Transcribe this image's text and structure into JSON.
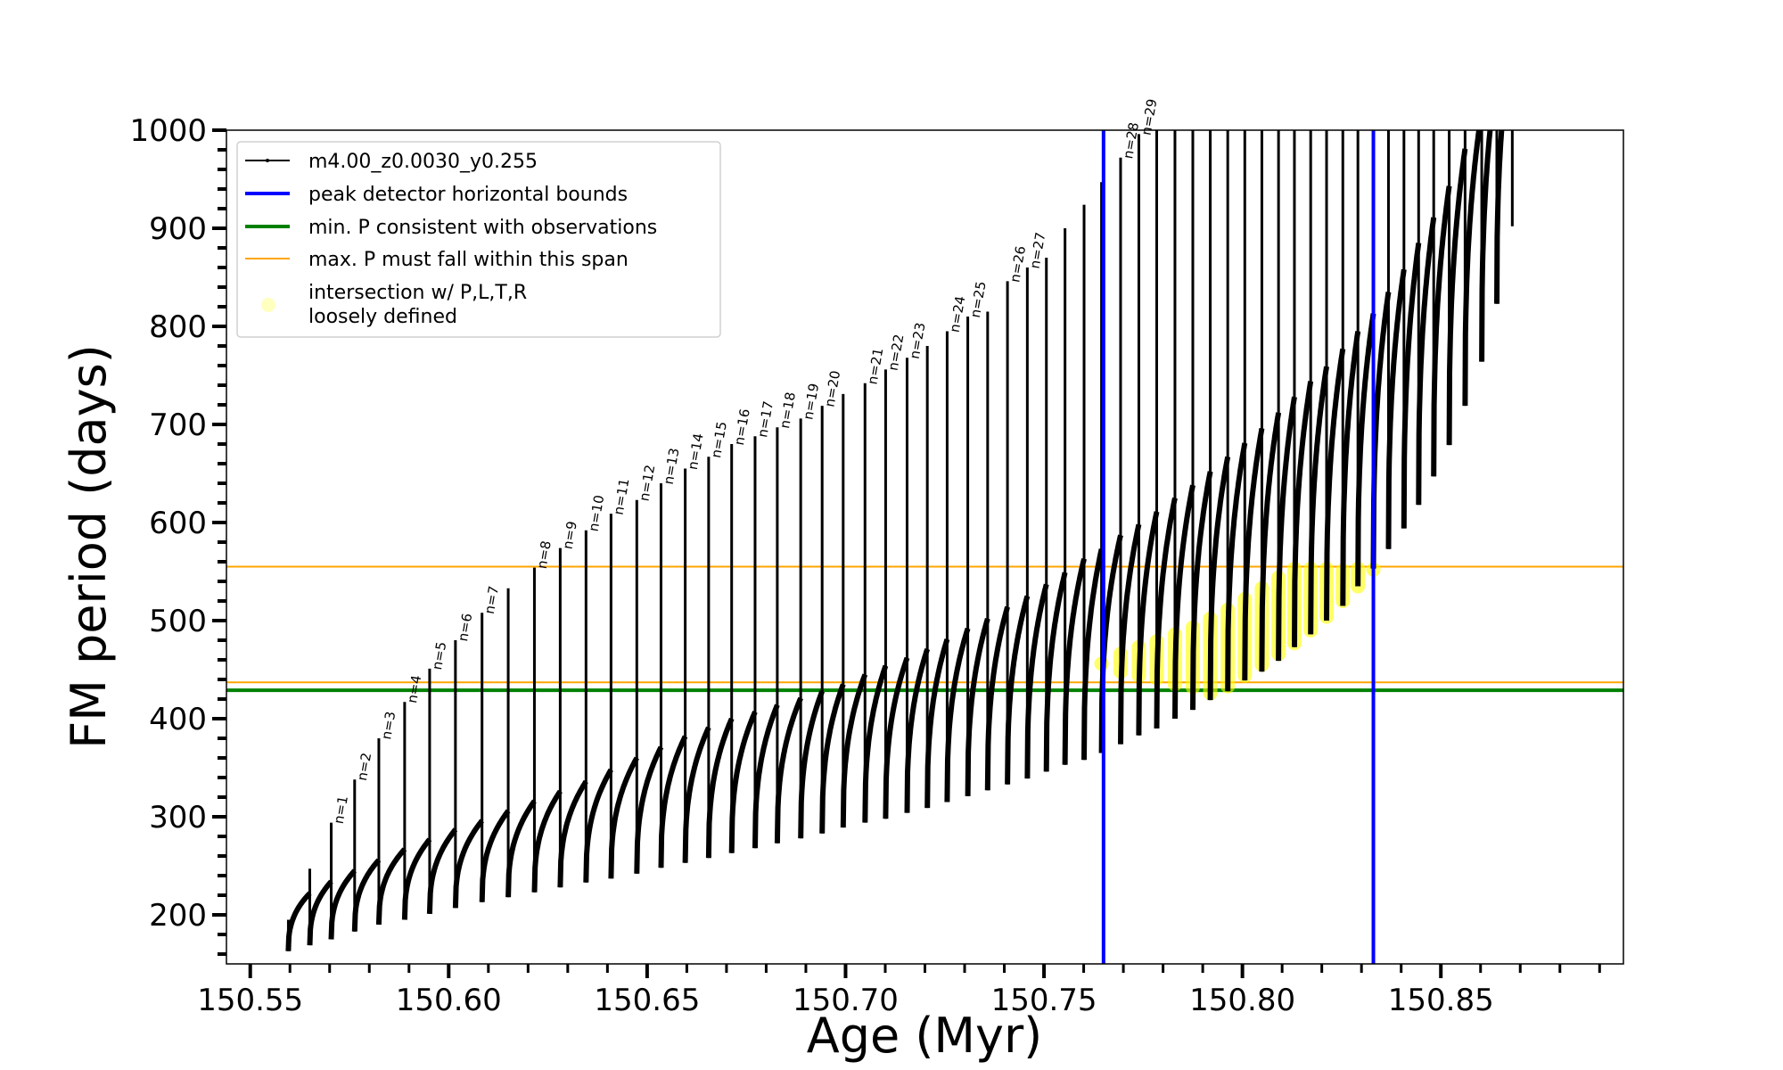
{
  "chart_data": {
    "type": "line",
    "title": "",
    "xlabel": "Age (Myr)",
    "ylabel": "FM period (days)",
    "xlim": [
      150.544,
      150.896
    ],
    "ylim": [
      150,
      1000
    ],
    "grid": false,
    "legend_placement": "top-left",
    "x_ticks": [
      "150.55",
      "150.60",
      "150.65",
      "150.70",
      "150.75",
      "150.80",
      "150.85"
    ],
    "y_ticks": [
      "200",
      "300",
      "400",
      "500",
      "600",
      "700",
      "800",
      "900",
      "1000"
    ],
    "colors": {
      "track": "#000000",
      "bounds": "#0000ff",
      "min_p": "#008000",
      "max_p_span": "#ffa500",
      "intersection": "#ffff00"
    },
    "legend": [
      {
        "label": "m4.00_z0.0030_y0.255",
        "kind": "track"
      },
      {
        "label": "peak detector horizontal bounds",
        "kind": "bounds"
      },
      {
        "label": "min. P consistent with observations",
        "kind": "min_p"
      },
      {
        "label": "max. P must fall within this span",
        "kind": "max_p_span"
      },
      {
        "label": "intersection w/ P,L,T,R\nloosely defined",
        "label_lines": [
          "intersection w/ P,L,T,R",
          "loosely defined"
        ],
        "kind": "intersection"
      }
    ],
    "vertical_lines": [
      150.765,
      150.833
    ],
    "min_p": 429,
    "max_p_span": [
      437,
      555
    ],
    "pulses": [
      {
        "age": 150.5596,
        "peak": 195,
        "low": 163,
        "crest": null
      },
      {
        "age": 150.565,
        "peak": 247,
        "low": 169,
        "crest": 222
      },
      {
        "age": 150.5704,
        "peak": 294,
        "low": 175,
        "crest": 234,
        "label": "n=1"
      },
      {
        "age": 150.5763,
        "peak": 338,
        "low": 183,
        "crest": 245,
        "label": "n=2"
      },
      {
        "age": 150.5824,
        "peak": 380,
        "low": 190,
        "crest": 256,
        "label": "n=3"
      },
      {
        "age": 150.5889,
        "peak": 417,
        "low": 195,
        "crest": 267,
        "label": "n=4"
      },
      {
        "age": 150.5952,
        "peak": 451,
        "low": 201,
        "crest": 277,
        "label": "n=5"
      },
      {
        "age": 150.6017,
        "peak": 480,
        "low": 207,
        "crest": 287,
        "label": "n=6"
      },
      {
        "age": 150.6084,
        "peak": 508,
        "low": 213,
        "crest": 296,
        "label": "n=7"
      },
      {
        "age": 150.615,
        "peak": 533,
        "low": 218,
        "crest": 306
      },
      {
        "age": 150.6216,
        "peak": 554,
        "low": 223,
        "crest": 316,
        "label": "n=8"
      },
      {
        "age": 150.6281,
        "peak": 574,
        "low": 228,
        "crest": 326,
        "label": "n=9"
      },
      {
        "age": 150.6346,
        "peak": 592,
        "low": 233,
        "crest": 336,
        "label": "n=10"
      },
      {
        "age": 150.6409,
        "peak": 609,
        "low": 237,
        "crest": 348,
        "label": "n=11"
      },
      {
        "age": 150.6474,
        "peak": 623,
        "low": 242,
        "crest": 360,
        "label": "n=12"
      },
      {
        "age": 150.6535,
        "peak": 640,
        "low": 248,
        "crest": 371,
        "label": "n=13"
      },
      {
        "age": 150.6596,
        "peak": 655,
        "low": 253,
        "crest": 382,
        "label": "n=14"
      },
      {
        "age": 150.6655,
        "peak": 667,
        "low": 258,
        "crest": 391,
        "label": "n=15"
      },
      {
        "age": 150.6713,
        "peak": 680,
        "low": 263,
        "crest": 400,
        "label": "n=16"
      },
      {
        "age": 150.6772,
        "peak": 688,
        "low": 268,
        "crest": 407,
        "label": "n=17"
      },
      {
        "age": 150.6828,
        "peak": 697,
        "low": 273,
        "crest": 414,
        "label": "n=18"
      },
      {
        "age": 150.6887,
        "peak": 706,
        "low": 278,
        "crest": 421,
        "label": "n=19"
      },
      {
        "age": 150.6941,
        "peak": 719,
        "low": 283,
        "crest": 428,
        "label": "n=20"
      },
      {
        "age": 150.6994,
        "peak": 731,
        "low": 289,
        "crest": 435
      },
      {
        "age": 150.7049,
        "peak": 742,
        "low": 294,
        "crest": 445,
        "label": "n=21"
      },
      {
        "age": 150.7101,
        "peak": 756,
        "low": 298,
        "crest": 454,
        "label": "n=22"
      },
      {
        "age": 150.7155,
        "peak": 768,
        "low": 304,
        "crest": 462,
        "label": "n=23"
      },
      {
        "age": 150.7206,
        "peak": 780,
        "low": 309,
        "crest": 471
      },
      {
        "age": 150.7256,
        "peak": 795,
        "low": 315,
        "crest": 481,
        "label": "n=24"
      },
      {
        "age": 150.7308,
        "peak": 810,
        "low": 321,
        "crest": 492,
        "label": "n=25"
      },
      {
        "age": 150.7358,
        "peak": 815,
        "low": 327,
        "crest": 502
      },
      {
        "age": 150.7408,
        "peak": 846,
        "low": 333,
        "crest": 514,
        "label": "n=26"
      },
      {
        "age": 150.7458,
        "peak": 860,
        "low": 339,
        "crest": 525,
        "label": "n=27"
      },
      {
        "age": 150.7506,
        "peak": 870,
        "low": 346,
        "crest": 537
      },
      {
        "age": 150.7553,
        "peak": 900,
        "low": 353,
        "crest": 549
      },
      {
        "age": 150.7601,
        "peak": 924,
        "low": 358,
        "crest": 563
      },
      {
        "age": 150.7645,
        "peak": 947,
        "low": 365,
        "crest": 573
      },
      {
        "age": 150.7693,
        "peak": 972,
        "low": 374,
        "crest": 587,
        "label": "n=28"
      },
      {
        "age": 150.7739,
        "peak": 996,
        "low": 383,
        "crest": 598,
        "label": "n=29"
      },
      {
        "age": 150.7784,
        "peak": null,
        "low": 390,
        "crest": 611
      },
      {
        "age": 150.783,
        "peak": null,
        "low": 400,
        "crest": 625
      },
      {
        "age": 150.7875,
        "peak": null,
        "low": 409,
        "crest": 638
      },
      {
        "age": 150.7919,
        "peak": null,
        "low": 419,
        "crest": 652
      },
      {
        "age": 150.7963,
        "peak": null,
        "low": 428,
        "crest": 667
      },
      {
        "age": 150.8006,
        "peak": null,
        "low": 439,
        "crest": 681
      },
      {
        "age": 150.8049,
        "peak": null,
        "low": 448,
        "crest": 696
      },
      {
        "age": 150.8091,
        "peak": null,
        "low": 459,
        "crest": 712
      },
      {
        "age": 150.8131,
        "peak": null,
        "low": 473,
        "crest": 728
      },
      {
        "age": 150.8172,
        "peak": null,
        "low": 486,
        "crest": 744
      },
      {
        "age": 150.8212,
        "peak": null,
        "low": 500,
        "crest": 759
      },
      {
        "age": 150.8253,
        "peak": null,
        "low": 515,
        "crest": 777
      },
      {
        "age": 150.8291,
        "peak": null,
        "low": 535,
        "crest": 795
      },
      {
        "age": 150.833,
        "peak": null,
        "low": 553,
        "crest": 813
      },
      {
        "age": 150.8368,
        "peak": null,
        "low": 573,
        "crest": 835
      },
      {
        "age": 150.8407,
        "peak": null,
        "low": 594,
        "crest": 858
      },
      {
        "age": 150.8444,
        "peak": null,
        "low": 618,
        "crest": 885
      },
      {
        "age": 150.8482,
        "peak": null,
        "low": 647,
        "crest": 911
      },
      {
        "age": 150.8521,
        "peak": null,
        "low": 679,
        "crest": 943
      },
      {
        "age": 150.8561,
        "peak": null,
        "low": 719,
        "crest": 981
      },
      {
        "age": 150.8603,
        "peak": null,
        "low": 764,
        "crest": 1020
      },
      {
        "age": 150.8641,
        "peak": null,
        "low": 823,
        "crest": 1060
      },
      {
        "age": 150.868,
        "peak": null,
        "low": 902,
        "crest": 1100
      }
    ],
    "intersection_ranges": [
      {
        "age": 150.7645,
        "p": [
          456,
          456
        ]
      },
      {
        "age": 150.7693,
        "p": [
          448,
          466
        ]
      },
      {
        "age": 150.7739,
        "p": [
          444,
          473
        ]
      },
      {
        "age": 150.7784,
        "p": [
          441,
          479
        ]
      },
      {
        "age": 150.783,
        "p": [
          435,
          486
        ]
      },
      {
        "age": 150.7875,
        "p": [
          432,
          493
        ]
      },
      {
        "age": 150.7919,
        "p": [
          426,
          502
        ]
      },
      {
        "age": 150.7963,
        "p": [
          433,
          511
        ]
      },
      {
        "age": 150.8006,
        "p": [
          444,
          522
        ]
      },
      {
        "age": 150.8049,
        "p": [
          455,
          533
        ]
      },
      {
        "age": 150.8091,
        "p": [
          466,
          544
        ]
      },
      {
        "age": 150.8131,
        "p": [
          477,
          553
        ]
      },
      {
        "age": 150.8172,
        "p": [
          490,
          553
        ]
      },
      {
        "age": 150.8212,
        "p": [
          504,
          553
        ]
      },
      {
        "age": 150.8253,
        "p": [
          520,
          551
        ]
      },
      {
        "age": 150.8291,
        "p": [
          535,
          553
        ]
      },
      {
        "age": 150.833,
        "p": [
          552,
          552
        ]
      }
    ]
  }
}
